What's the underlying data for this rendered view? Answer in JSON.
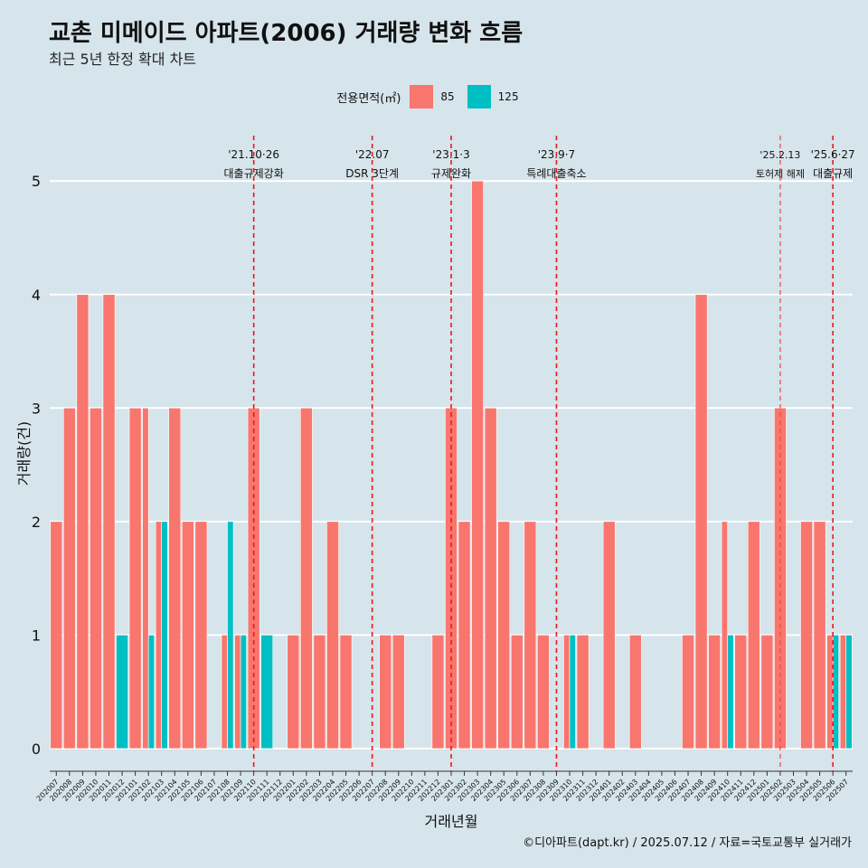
{
  "title": "교촌 미메이드 아파트(2006) 거래량 변화 흐름",
  "subtitle": "최근 5년 한정 확대 차트",
  "caption": "©디아파트(dapt.kr) / 2025.07.12 / 자료=국토교통부 실거래가",
  "legend": {
    "title": "전용면적(㎡)",
    "items": [
      {
        "label": "85",
        "color": "#f8766d"
      },
      {
        "label": "125",
        "color": "#00bfc4"
      }
    ]
  },
  "chart_data": {
    "type": "bar",
    "xlabel": "거래년월",
    "ylabel": "거래량(건)",
    "ylim": [
      -0.2,
      5.4
    ],
    "yticks": [
      0,
      1,
      2,
      3,
      4,
      5
    ],
    "grid": true,
    "legend_position": "top",
    "categories": [
      "202007",
      "202008",
      "202009",
      "202010",
      "202011",
      "202012",
      "202101",
      "202102",
      "202103",
      "202104",
      "202105",
      "202106",
      "202107",
      "202108",
      "202109",
      "202110",
      "202111",
      "202112",
      "202201",
      "202202",
      "202203",
      "202204",
      "202205",
      "202206",
      "202207",
      "202208",
      "202209",
      "202210",
      "202211",
      "202212",
      "202301",
      "202302",
      "202303",
      "202304",
      "202305",
      "202306",
      "202307",
      "202308",
      "202309",
      "202310",
      "202311",
      "202312",
      "202401",
      "202402",
      "202403",
      "202404",
      "202405",
      "202406",
      "202407",
      "202408",
      "202409",
      "202410",
      "202411",
      "202412",
      "202501",
      "202502",
      "202503",
      "202504",
      "202505",
      "202506",
      "202507"
    ],
    "series": [
      {
        "name": "85",
        "color": "#f8766d",
        "values": [
          2,
          3,
          4,
          3,
          4,
          0,
          3,
          3,
          2,
          3,
          2,
          2,
          0,
          1,
          1,
          3,
          0,
          0,
          1,
          3,
          1,
          2,
          1,
          0,
          0,
          1,
          1,
          0,
          0,
          1,
          3,
          2,
          5,
          3,
          2,
          1,
          2,
          1,
          0,
          1,
          1,
          0,
          2,
          0,
          1,
          0,
          0,
          0,
          1,
          4,
          1,
          2,
          1,
          2,
          1,
          3,
          0,
          2,
          2,
          1,
          1
        ]
      },
      {
        "name": "125",
        "color": "#00bfc4",
        "values": [
          0,
          0,
          0,
          0,
          0,
          1,
          0,
          1,
          2,
          0,
          0,
          0,
          0,
          2,
          1,
          0,
          1,
          0,
          0,
          0,
          0,
          0,
          0,
          0,
          0,
          0,
          0,
          0,
          0,
          0,
          0,
          0,
          0,
          0,
          0,
          0,
          0,
          0,
          0,
          1,
          0,
          0,
          0,
          0,
          0,
          0,
          0,
          0,
          0,
          0,
          0,
          1,
          0,
          0,
          0,
          0,
          0,
          0,
          0,
          1,
          1
        ]
      }
    ],
    "annotations": [
      {
        "x": "202110",
        "date": "'21.10·26",
        "label": "대출규제강화",
        "style": "dashed"
      },
      {
        "x": "202207",
        "date": "'22.07",
        "label": "DSR 3단계",
        "style": "dashed"
      },
      {
        "x": "202301",
        "date": "'23.1·3",
        "label": "규제완화",
        "style": "dashed"
      },
      {
        "x": "202309",
        "date": "'23.9·7",
        "label": "특례대출축소",
        "style": "dashed"
      },
      {
        "x": "202502",
        "date": "'25.2.13",
        "label": "토허제 해제",
        "style": "thin",
        "small": true
      },
      {
        "x": "202506",
        "date": "'25.6·27",
        "label": "대출규제",
        "style": "dashed"
      }
    ]
  }
}
